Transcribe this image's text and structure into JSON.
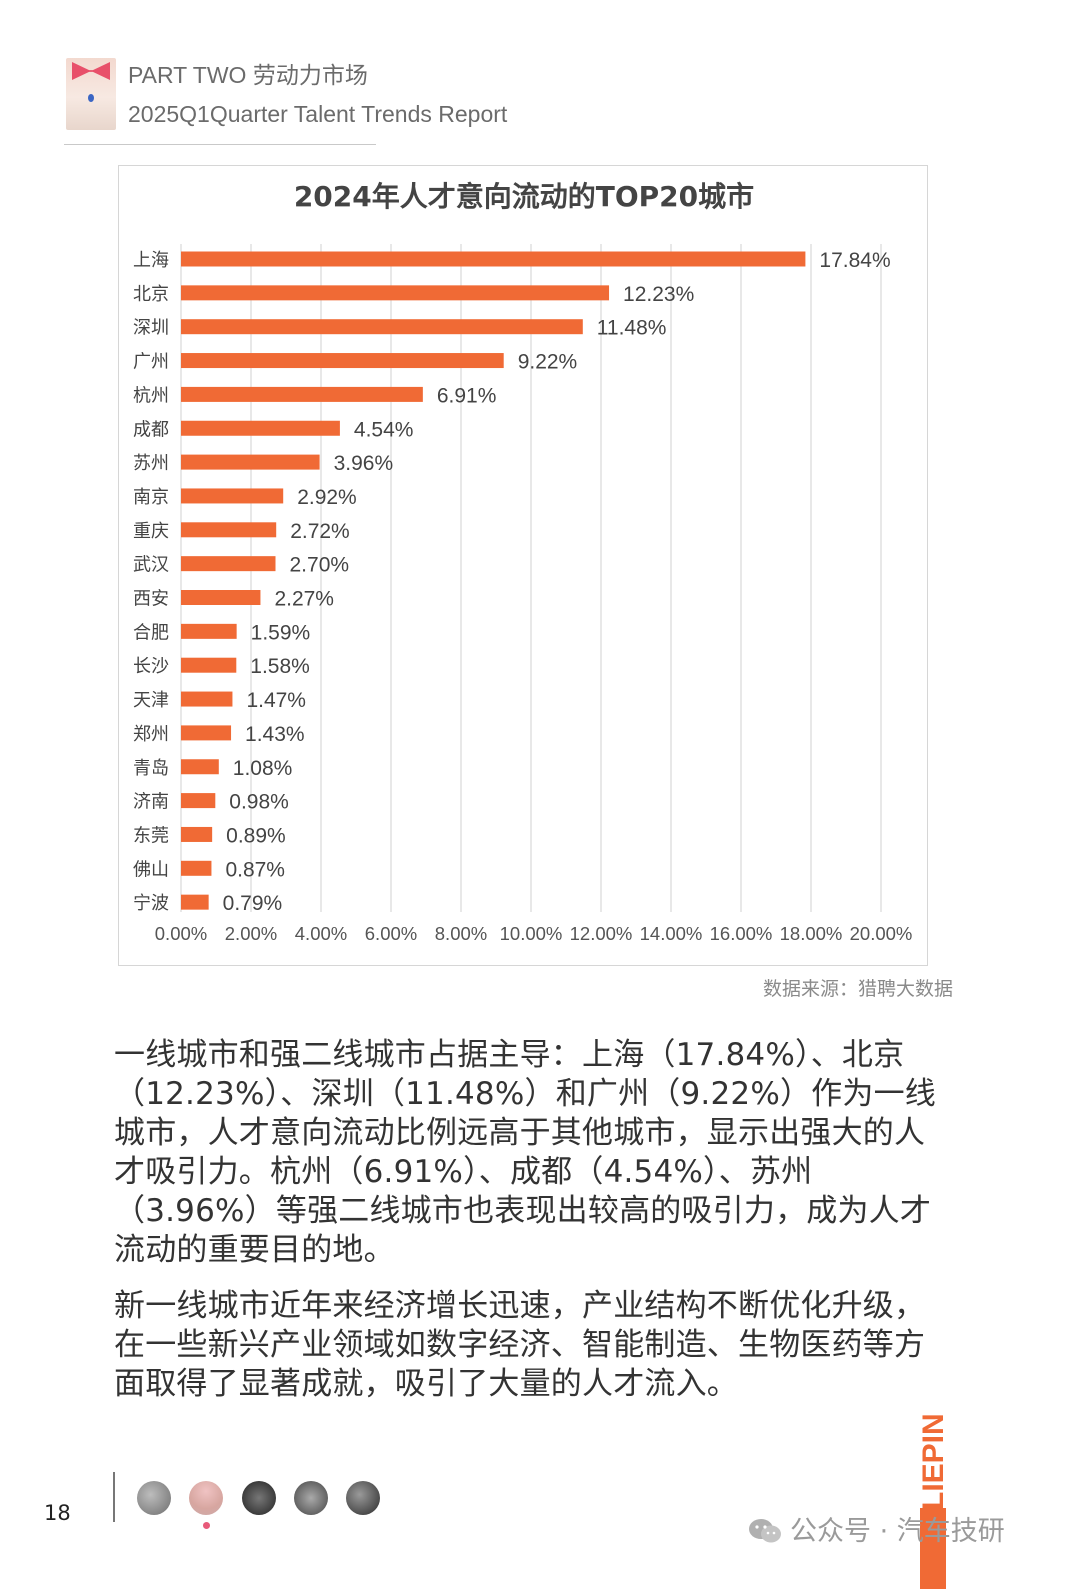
{
  "header": {
    "line1": "PART TWO 劳动力市场",
    "line2": "2025Q1Quarter Talent Trends Report"
  },
  "chart_data": {
    "type": "bar",
    "orientation": "horizontal",
    "title": "2024年人才意向流动的TOP20城市",
    "categories": [
      "上海",
      "北京",
      "深圳",
      "广州",
      "杭州",
      "成都",
      "苏州",
      "南京",
      "重庆",
      "武汉",
      "西安",
      "合肥",
      "长沙",
      "天津",
      "郑州",
      "青岛",
      "济南",
      "东莞",
      "佛山",
      "宁波"
    ],
    "values": [
      17.84,
      12.23,
      11.48,
      9.22,
      6.91,
      4.54,
      3.96,
      2.92,
      2.72,
      2.7,
      2.27,
      1.59,
      1.58,
      1.47,
      1.43,
      1.08,
      0.98,
      0.89,
      0.87,
      0.79
    ],
    "value_labels": [
      "17.84%",
      "12.23%",
      "11.48%",
      "9.22%",
      "6.91%",
      "4.54%",
      "3.96%",
      "2.92%",
      "2.72%",
      "2.70%",
      "2.27%",
      "1.59%",
      "1.58%",
      "1.47%",
      "1.43%",
      "1.08%",
      "0.98%",
      "0.89%",
      "0.87%",
      "0.79%"
    ],
    "x_ticks": [
      "0.00%",
      "2.00%",
      "4.00%",
      "6.00%",
      "8.00%",
      "10.00%",
      "12.00%",
      "14.00%",
      "16.00%",
      "18.00%",
      "20.00%"
    ],
    "xlim": [
      0,
      20
    ],
    "grid": true,
    "bar_color": "#f06a35",
    "xlabel": "",
    "ylabel": ""
  },
  "source": "数据来源：猎聘大数据",
  "paragraphs": [
    "一线城市和强二线城市占据主导：上海（17.84%）、北京（12.23%）、深圳（11.48%）和广州（9.22%）作为一线城市，人才意向流动比例远高于其他城市，显示出强大的人才吸引力。杭州（6.91%）、成都（4.54%）、苏州（3.96%）等强二线城市也表现出较高的吸引力，成为人才流动的重要目的地。",
    "新一线城市近年来经济增长迅速，产业结构不断优化升级，在一些新兴产业领域如数字经济、智能制造、生物医药等方面取得了显著成就，吸引了大量的人才流入。"
  ],
  "footer": {
    "page_number": "18",
    "brand": "LIEPIN",
    "wechat_label": "公众号 · 汽车技研",
    "accent_color": "#f06a35"
  }
}
